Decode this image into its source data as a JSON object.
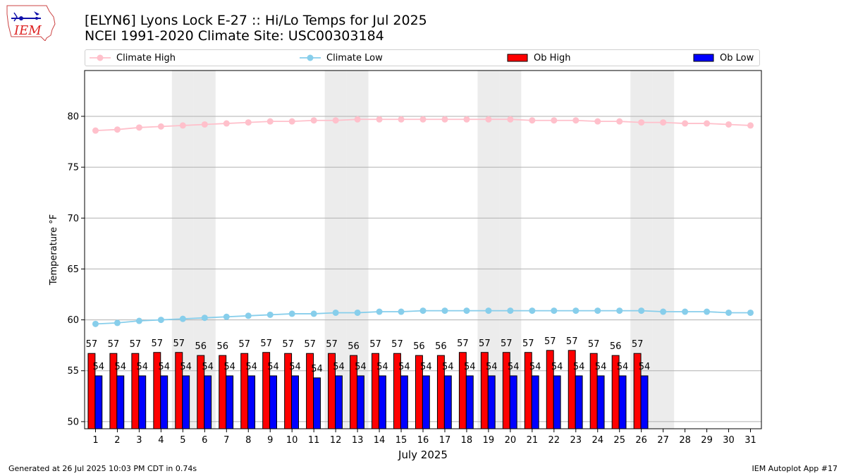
{
  "header": {
    "logo_text": "IEM",
    "title_line1": "[ELYN6] Lyons Lock E-27 :: Hi/Lo Temps for Jul 2025",
    "title_line2": "NCEI 1991-2020 Climate Site: USC00303184"
  },
  "legend": [
    {
      "label": "Climate High",
      "kind": "line",
      "color": "#ffc0cb"
    },
    {
      "label": "Climate Low",
      "kind": "line",
      "color": "#87ceeb"
    },
    {
      "label": "Ob High",
      "kind": "bar",
      "color": "#ff0000"
    },
    {
      "label": "Ob Low",
      "kind": "bar",
      "color": "#0000ff"
    }
  ],
  "footer": {
    "left": "Generated at 26 Jul 2025 10:03 PM CDT in 0.74s",
    "right": "IEM Autoplot App #17"
  },
  "chart_data": {
    "type": "bar",
    "xlabel": "July 2025",
    "ylabel": "Temperature °F",
    "ylim": [
      49.3,
      84.5
    ],
    "yticks": [
      50,
      55,
      60,
      65,
      70,
      75,
      80
    ],
    "grid": "horizontal",
    "legend_position": "top",
    "days": [
      1,
      2,
      3,
      4,
      5,
      6,
      7,
      8,
      9,
      10,
      11,
      12,
      13,
      14,
      15,
      16,
      17,
      18,
      19,
      20,
      21,
      22,
      23,
      24,
      25,
      26,
      27,
      28,
      29,
      30,
      31
    ],
    "weekend_days": [
      5,
      6,
      12,
      13,
      19,
      20,
      26,
      27
    ],
    "series": [
      {
        "name": "Ob High",
        "type": "bar",
        "color": "#ff0000",
        "values": [
          57,
          57,
          57,
          57,
          57,
          56,
          56,
          57,
          57,
          57,
          57,
          57,
          56,
          57,
          57,
          56,
          56,
          57,
          57,
          57,
          57,
          57,
          57,
          57,
          56,
          57
        ],
        "plotted": [
          56.7,
          56.7,
          56.7,
          56.8,
          56.8,
          56.5,
          56.5,
          56.7,
          56.8,
          56.7,
          56.7,
          56.7,
          56.5,
          56.7,
          56.7,
          56.5,
          56.5,
          56.8,
          56.8,
          56.8,
          56.8,
          57.0,
          57.0,
          56.7,
          56.5,
          56.7
        ]
      },
      {
        "name": "Ob Low",
        "type": "bar",
        "color": "#0000ff",
        "values": [
          54,
          54,
          54,
          54,
          54,
          54,
          54,
          54,
          54,
          54,
          54,
          54,
          54,
          54,
          54,
          54,
          54,
          54,
          54,
          54,
          54,
          54,
          54,
          54,
          54,
          54
        ],
        "plotted": [
          54.5,
          54.5,
          54.5,
          54.5,
          54.5,
          54.5,
          54.5,
          54.5,
          54.5,
          54.5,
          54.3,
          54.5,
          54.5,
          54.5,
          54.5,
          54.5,
          54.5,
          54.5,
          54.5,
          54.5,
          54.5,
          54.5,
          54.5,
          54.5,
          54.5,
          54.5
        ]
      },
      {
        "name": "Climate High",
        "type": "line",
        "color": "#ffc0cb",
        "values": [
          78.6,
          78.7,
          78.9,
          79.0,
          79.1,
          79.2,
          79.3,
          79.4,
          79.5,
          79.5,
          79.6,
          79.6,
          79.7,
          79.7,
          79.7,
          79.7,
          79.7,
          79.7,
          79.7,
          79.7,
          79.6,
          79.6,
          79.6,
          79.5,
          79.5,
          79.4,
          79.4,
          79.3,
          79.3,
          79.2,
          79.1
        ]
      },
      {
        "name": "Climate Low",
        "type": "line",
        "color": "#87ceeb",
        "values": [
          59.6,
          59.7,
          59.9,
          60.0,
          60.1,
          60.2,
          60.3,
          60.4,
          60.5,
          60.6,
          60.6,
          60.7,
          60.7,
          60.8,
          60.8,
          60.9,
          60.9,
          60.9,
          60.9,
          60.9,
          60.9,
          60.9,
          60.9,
          60.9,
          60.9,
          60.9,
          60.8,
          60.8,
          60.8,
          60.7,
          60.7
        ]
      }
    ]
  }
}
